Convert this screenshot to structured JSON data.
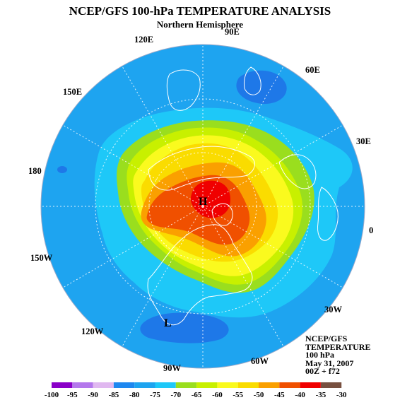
{
  "title": "NCEP/GFS 100-hPa TEMPERATURE ANALYSIS",
  "subtitle": "Northern Hemisphere",
  "info": [
    "NCEP/GFS",
    "TEMPERATURE",
    "100 hPa",
    "May 31, 2007",
    "00Z + f72"
  ],
  "lon_labels": [
    "120E",
    "90E",
    "60E",
    "150E",
    "30E",
    "180",
    "0",
    "150W",
    "30W",
    "120W",
    "60W",
    "90W"
  ],
  "pressure_markers": [
    {
      "label": "H",
      "meaning": "warm center"
    },
    {
      "label": "L",
      "meaning": "cold center"
    }
  ],
  "legend": {
    "ticks": [
      "-100",
      "-95",
      "-90",
      "-85",
      "-80",
      "-75",
      "-70",
      "-65",
      "-60",
      "-55",
      "-50",
      "-45",
      "-40",
      "-35",
      "-30"
    ],
    "colors": [
      "#8a00c8",
      "#b478ec",
      "#e0b8f0",
      "#1e88f0",
      "#1ea4f0",
      "#1ec8f8",
      "#9ade1e",
      "#c8f000",
      "#fafa1e",
      "#fadc00",
      "#faa000",
      "#f05000",
      "#f00000",
      "#785040"
    ]
  },
  "colors": {
    "level_-80": "#1e88f0",
    "level_-75": "#1ec8f8",
    "level_-70": "#9ade1e",
    "level_-65": "#c8f000",
    "level_-60": "#fafa1e",
    "level_-55": "#fadc00",
    "level_-50": "#faa000",
    "level_-45": "#f05000",
    "level_-40": "#f00000"
  }
}
